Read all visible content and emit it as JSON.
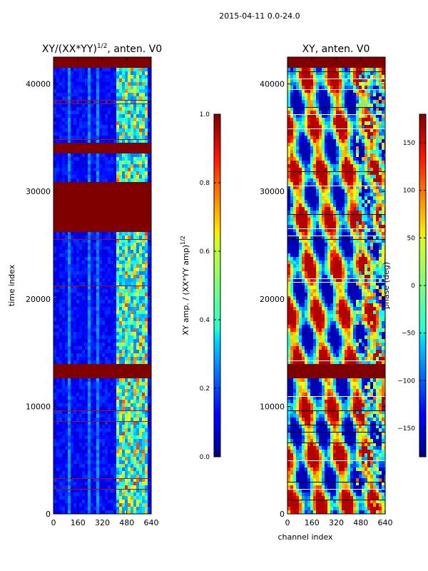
{
  "figure_title": "2015-04-11 0.0-24.0",
  "chart_data": [
    {
      "type": "heatmap",
      "title_main": "XY/(XX*YY)",
      "title_exp": "1/2",
      "title_suffix": ", anten. V0",
      "xlabel": "",
      "ylabel": "time index",
      "xlim": [
        0,
        640
      ],
      "ylim": [
        0,
        42500
      ],
      "xticks": [
        0,
        160,
        320,
        480,
        640
      ],
      "yticks": [
        0,
        10000,
        20000,
        30000,
        40000
      ],
      "colormap": "jet",
      "colorbar": {
        "label_main": "XY amp. / (XX*YY amp)",
        "label_exp": "1/2",
        "range": [
          0.0,
          1.0
        ],
        "ticks": [
          "0.0",
          "0.2",
          "0.4",
          "0.6",
          "0.8",
          "1.0"
        ],
        "tick_values": [
          0.0,
          0.2,
          0.4,
          0.6,
          0.8,
          1.0
        ]
      },
      "flagged_time_ranges": [
        [
          41600,
          42500
        ],
        [
          33800,
          34700
        ],
        [
          26400,
          31000
        ],
        [
          12700,
          14200
        ]
      ],
      "notes": "Mostly low amplitude (0-0.2) with bright structure (0.4-0.9) in channels ~410-600"
    },
    {
      "type": "heatmap",
      "title": "XY, anten. V0",
      "xlabel": "channel index",
      "ylabel": "",
      "xlim": [
        0,
        640
      ],
      "ylim": [
        0,
        42500
      ],
      "xticks": [
        0,
        160,
        320,
        480,
        640
      ],
      "yticks": [
        0,
        10000,
        20000,
        30000,
        40000
      ],
      "colormap": "jet",
      "colorbar": {
        "label": "phase (deg)",
        "range": [
          -180,
          180
        ],
        "ticks": [
          "150",
          "100",
          "50",
          "0",
          "−50",
          "−100",
          "−150"
        ],
        "tick_values": [
          150,
          100,
          50,
          0,
          -50,
          -100,
          -150
        ]
      },
      "flagged_time_ranges": [
        [
          41600,
          42500
        ],
        [
          12700,
          14200
        ]
      ],
      "notes": "Phase alternates strongly across channels, mostly red/orange with blue/cyan bands"
    }
  ],
  "colors": {
    "flag": "#800000",
    "axis": "#000000",
    "background": "#ffffff"
  }
}
